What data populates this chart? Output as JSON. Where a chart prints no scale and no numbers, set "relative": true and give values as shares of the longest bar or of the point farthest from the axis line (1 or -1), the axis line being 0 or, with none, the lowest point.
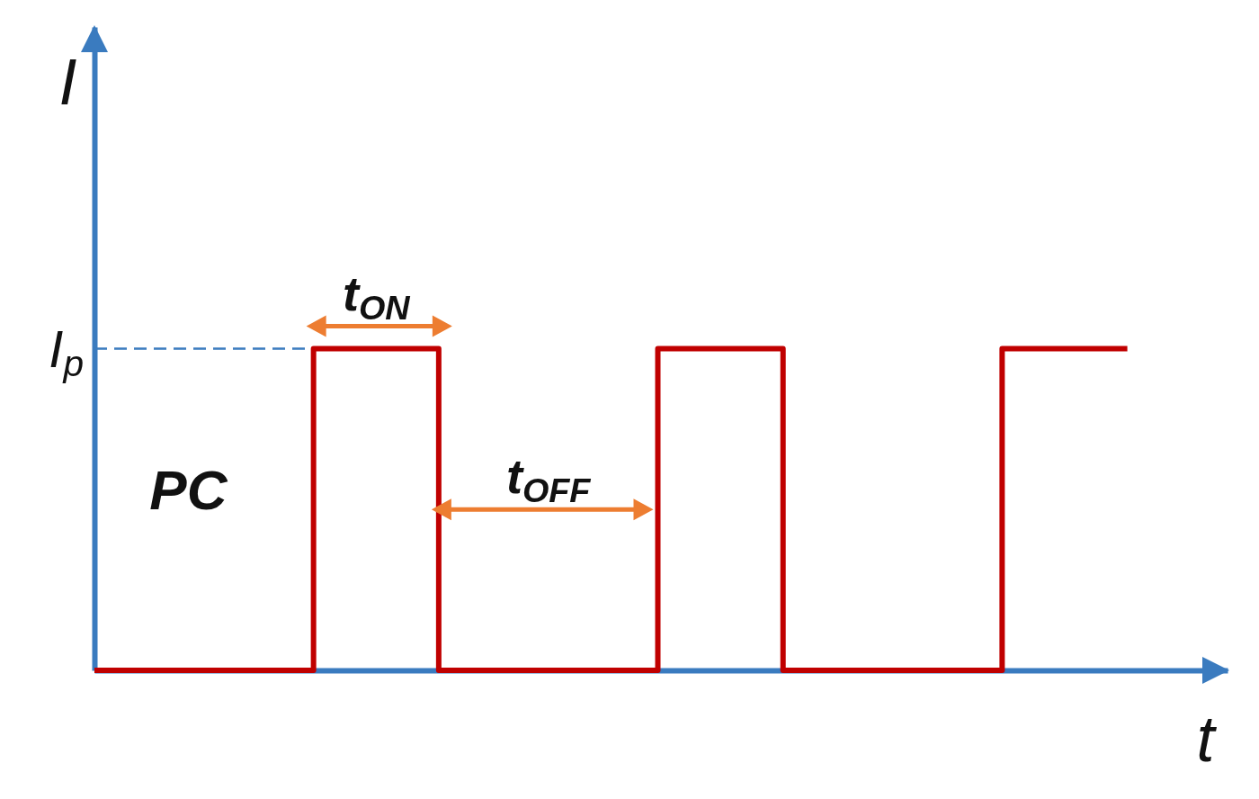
{
  "chart_data": {
    "type": "step",
    "relative": true,
    "xlabel": "t",
    "ylabel": "I",
    "color": "#c00000",
    "line_style": "solid",
    "marker": "none",
    "categories": [
      null,
      null,
      null,
      null,
      null,
      null,
      null,
      null,
      null,
      null,
      null,
      null,
      null,
      null,
      null,
      null,
      null,
      null,
      null,
      null,
      null,
      null,
      null,
      null,
      null,
      null,
      null,
      null,
      null,
      null,
      null,
      null,
      null,
      null
    ],
    "values": [
      0,
      0,
      0,
      0,
      0,
      0,
      0,
      1,
      1,
      1,
      1,
      0,
      0,
      0,
      0,
      0,
      0,
      0,
      1,
      1,
      1,
      1,
      0,
      0,
      0,
      0,
      0,
      0,
      0,
      1,
      1,
      1,
      1,
      1
    ],
    "ref_lines": [
      {
        "axis": "y",
        "value": 1,
        "label": "I$_{p}$",
        "color": "#3a7bbf",
        "line_style": "dashed"
      }
    ],
    "annotations": [
      "t$_{ON}$",
      "t$_{OFF}$",
      "PC"
    ]
  }
}
